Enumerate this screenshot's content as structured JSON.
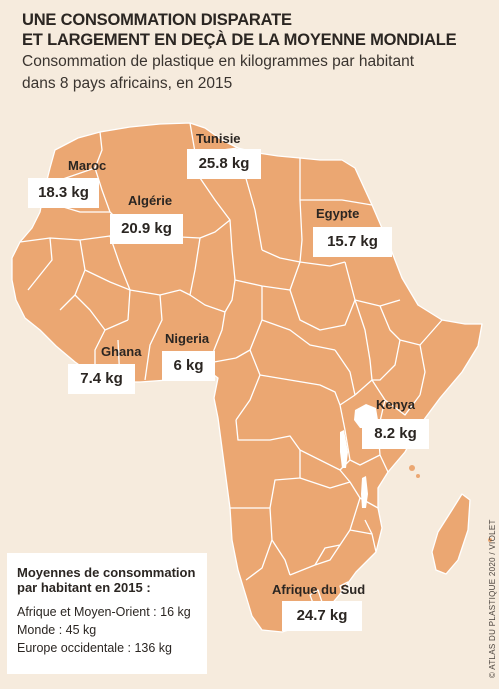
{
  "header": {
    "title_line1": "UNE CONSOMMATION DISPARATE",
    "title_line2": "ET LARGEMENT EN DEÇÀ DE LA MOYENNE MONDIALE",
    "subtitle_line1": "Consommation de plastique en kilogrammes par habitant",
    "subtitle_line2": "dans 8 pays africains, en 2015"
  },
  "colors": {
    "background": "#f6ebdd",
    "land": "#eba772",
    "border": "#ffffff",
    "label_box": "#ffffff"
  },
  "countries": [
    {
      "id": "maroc",
      "name": "Maroc",
      "value": "18.3 kg"
    },
    {
      "id": "algerie",
      "name": "Algérie",
      "value": "20.9 kg"
    },
    {
      "id": "tunisie",
      "name": "Tunisie",
      "value": "25.8 kg"
    },
    {
      "id": "egypte",
      "name": "Egypte",
      "value": "15.7 kg"
    },
    {
      "id": "ghana",
      "name": "Ghana",
      "value": "7.4 kg"
    },
    {
      "id": "nigeria",
      "name": "Nigeria",
      "value": "6 kg"
    },
    {
      "id": "kenya",
      "name": "Kenya",
      "value": "8.2 kg"
    },
    {
      "id": "afrique-du-sud",
      "name": "Afrique du Sud",
      "value": "24.7 kg"
    }
  ],
  "legend": {
    "title_line1": "Moyennes de consommation",
    "title_line2": "par habitant en 2015 :",
    "items": [
      "Afrique et Moyen-Orient : 16 kg",
      "Monde : 45 kg",
      "Europe occidentale : 136 kg"
    ]
  },
  "credit": "© ATLAS DU PLASTIQUE 2020 / VIOLET"
}
